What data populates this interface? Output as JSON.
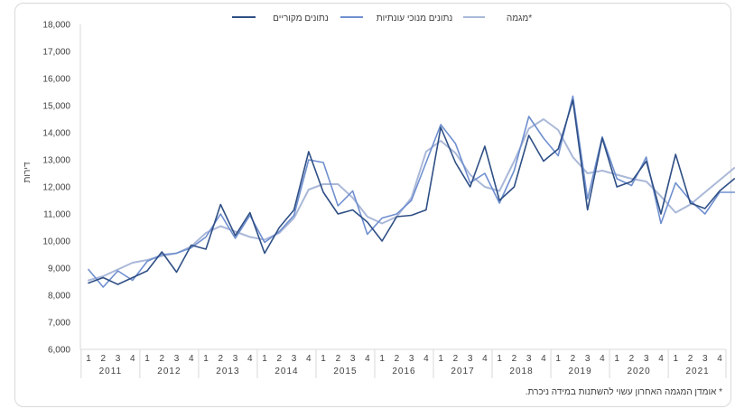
{
  "chart_data": {
    "type": "line",
    "ylabel": "דירות",
    "ylim": [
      6000,
      18000
    ],
    "y_ticks": [
      "6,000",
      "7,000",
      "8,000",
      "9,000",
      "10,000",
      "11,000",
      "12,000",
      "13,000",
      "14,000",
      "15,000",
      "16,000",
      "17,000",
      "18,000"
    ],
    "grid": false,
    "legend_position": "top",
    "years": [
      "2011",
      "2012",
      "2013",
      "2014",
      "2015",
      "2016",
      "2017",
      "2018",
      "2019",
      "2020",
      "2021"
    ],
    "quarters": [
      "1",
      "2",
      "3",
      "4"
    ],
    "series": [
      {
        "name": "נתונים מקוריים",
        "color": "#2f4f85",
        "values": [
          8450,
          8650,
          8400,
          8650,
          8900,
          9600,
          8850,
          9850,
          9700,
          11350,
          10200,
          11050,
          9550,
          10500,
          11150,
          13300,
          11800,
          11000,
          11150,
          10700,
          10000,
          10900,
          10950,
          11150,
          14200,
          12900,
          12000,
          13500,
          11500,
          12000,
          13900,
          12950,
          13400,
          15200,
          11150,
          13800,
          12000,
          12200,
          12950,
          11000,
          13200,
          11400,
          11200,
          11850,
          12300
        ]
      },
      {
        "name": "נתונים מנוכי עונתיות",
        "color": "#6f8fcf",
        "values": [
          8950,
          8300,
          8900,
          8550,
          9250,
          9500,
          9550,
          9750,
          10150,
          11000,
          10100,
          10950,
          9950,
          10350,
          10950,
          13000,
          12900,
          11300,
          11850,
          10250,
          10850,
          11000,
          11500,
          12900,
          14300,
          13600,
          12150,
          12500,
          11400,
          12600,
          14600,
          13800,
          13150,
          15350,
          11550,
          13850,
          12300,
          12050,
          13100,
          10650,
          12150,
          11500,
          11000,
          11800,
          11800
        ]
      },
      {
        "name": "מגמה*",
        "color": "#aab8d8",
        "values": [
          8550,
          8700,
          8950,
          9200,
          9300,
          9450,
          9550,
          9800,
          10300,
          10550,
          10350,
          10150,
          10050,
          10300,
          10850,
          11900,
          12100,
          12100,
          11600,
          10900,
          10650,
          10900,
          11600,
          13300,
          13700,
          13250,
          12450,
          12000,
          11850,
          12950,
          14150,
          14500,
          14100,
          13100,
          12500,
          12600,
          12450,
          12300,
          12200,
          11650,
          11050,
          11350,
          11800,
          12250,
          12700
        ]
      }
    ]
  },
  "footnote": "* אומדן המגמה האחרון עשוי להשתנות במידה ניכרת."
}
